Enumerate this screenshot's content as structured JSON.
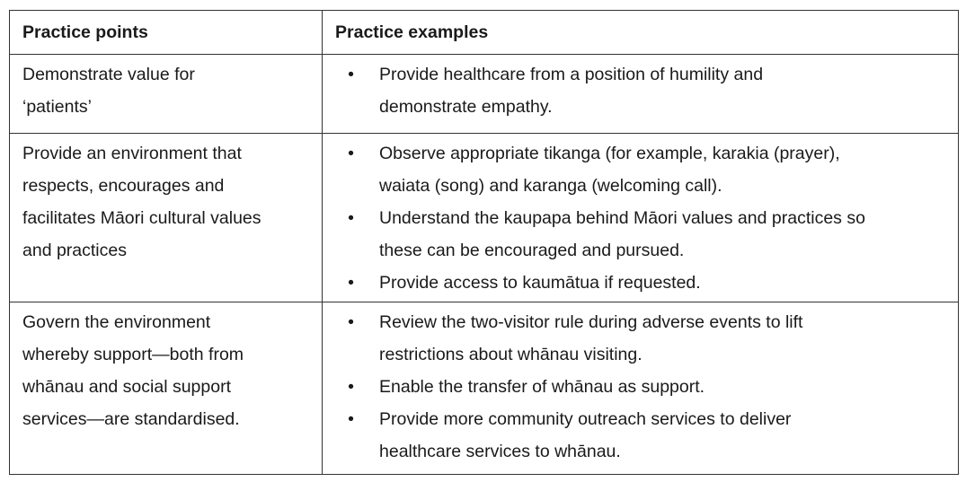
{
  "header": {
    "col1": "Practice points",
    "col2": "Practice examples"
  },
  "rows": [
    {
      "point": [
        "Demonstrate value for",
        "‘patients’"
      ],
      "examples": [
        [
          "Provide healthcare from a position of humility and",
          "demonstrate empathy."
        ]
      ]
    },
    {
      "point": [
        "Provide an environment that",
        "respects, encourages and",
        "facilitates Māori cultural values",
        "and practices"
      ],
      "examples": [
        [
          "Observe appropriate tikanga (for example, karakia (prayer),",
          "waiata (song) and karanga (welcoming call)."
        ],
        [
          "Understand the kaupapa behind Māori values and practices so",
          "these can be encouraged and pursued."
        ],
        [
          "Provide access to kaumātua if requested."
        ]
      ]
    },
    {
      "point": [
        "Govern the environment",
        "whereby support—both from",
        "whānau and social support",
        "services—are standardised."
      ],
      "examples": [
        [
          "Review the two-visitor rule during adverse events to lift",
          "restrictions about whānau visiting."
        ],
        [
          "Enable the transfer of whānau as support."
        ],
        [
          "Provide more community outreach services to deliver",
          "healthcare services to whānau."
        ]
      ]
    }
  ],
  "bullet_glyph": "•"
}
